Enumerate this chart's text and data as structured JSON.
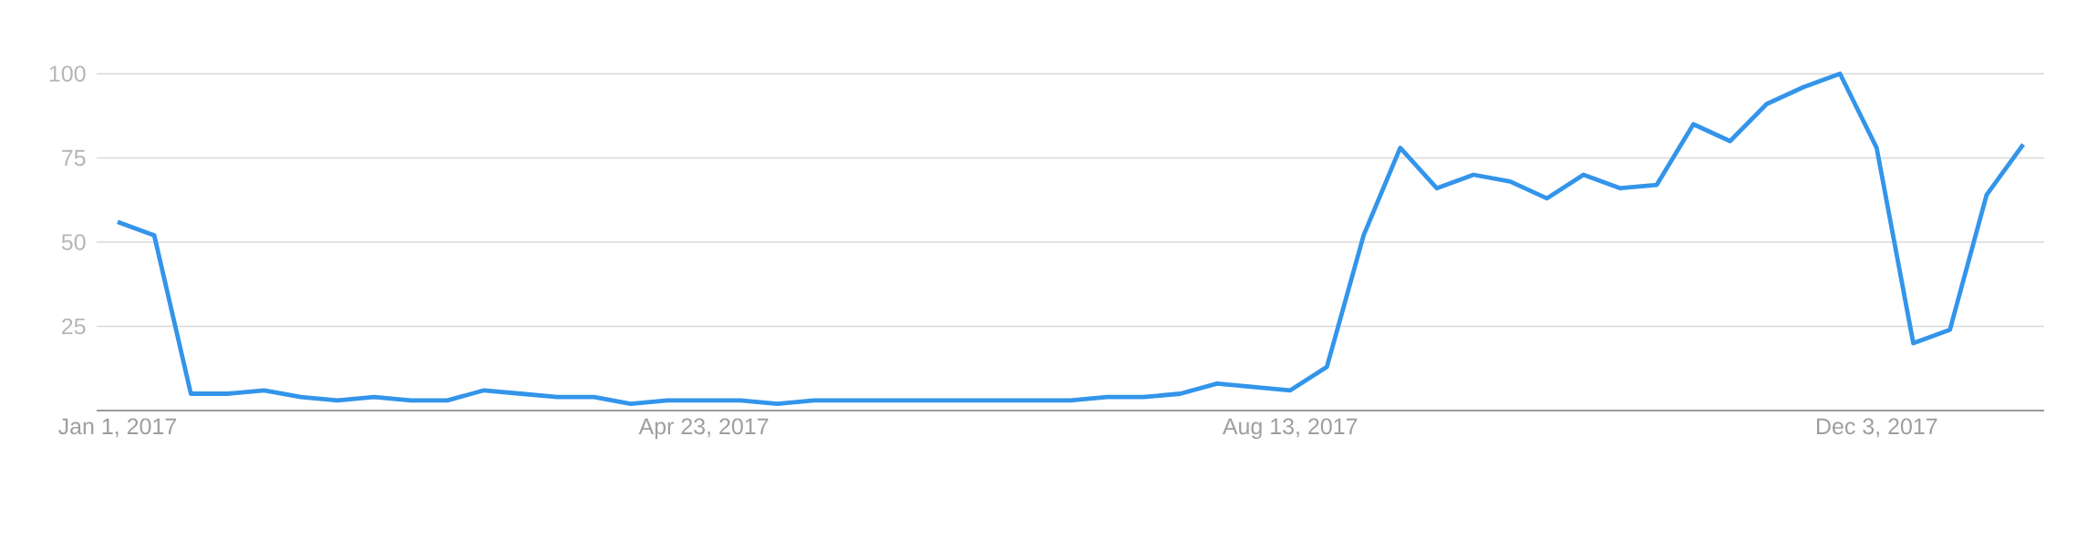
{
  "chart_data": {
    "type": "line",
    "x": [
      "2017-01-01",
      "2017-01-08",
      "2017-01-15",
      "2017-01-22",
      "2017-01-29",
      "2017-02-05",
      "2017-02-12",
      "2017-02-19",
      "2017-02-26",
      "2017-03-05",
      "2017-03-12",
      "2017-03-19",
      "2017-03-26",
      "2017-04-02",
      "2017-04-09",
      "2017-04-16",
      "2017-04-23",
      "2017-04-30",
      "2017-05-07",
      "2017-05-14",
      "2017-05-21",
      "2017-05-28",
      "2017-06-04",
      "2017-06-11",
      "2017-06-18",
      "2017-06-25",
      "2017-07-02",
      "2017-07-09",
      "2017-07-16",
      "2017-07-23",
      "2017-07-30",
      "2017-08-06",
      "2017-08-13",
      "2017-08-20",
      "2017-08-27",
      "2017-09-03",
      "2017-09-10",
      "2017-09-17",
      "2017-09-24",
      "2017-10-01",
      "2017-10-08",
      "2017-10-15",
      "2017-10-22",
      "2017-10-29",
      "2017-11-05",
      "2017-11-12",
      "2017-11-19",
      "2017-11-26",
      "2017-12-03",
      "2017-12-10",
      "2017-12-17",
      "2017-12-24",
      "2017-12-31"
    ],
    "series": [
      {
        "color": "#3395ea",
        "values": [
          56,
          52,
          5,
          5,
          6,
          4,
          3,
          4,
          3,
          3,
          6,
          5,
          4,
          4,
          2,
          3,
          3,
          3,
          2,
          3,
          3,
          3,
          3,
          3,
          3,
          3,
          3,
          4,
          4,
          5,
          8,
          7,
          6,
          13,
          52,
          78,
          66,
          70,
          68,
          63,
          70,
          66,
          67,
          85,
          80,
          91,
          96,
          100,
          78,
          20,
          24,
          64,
          79
        ]
      }
    ],
    "xlim": [
      "2016-12-28",
      "2018-01-04"
    ],
    "xticks": [
      {
        "value": "2017-01-01",
        "label": "Jan 1, 2017"
      },
      {
        "value": "2017-04-23",
        "label": "Apr 23, 2017"
      },
      {
        "value": "2017-08-13",
        "label": "Aug 13, 2017"
      },
      {
        "value": "2017-12-03",
        "label": "Dec 3, 2017"
      }
    ],
    "ylim": [
      0,
      100
    ],
    "yticks": [
      25,
      50,
      75,
      100
    ],
    "grid": "y"
  }
}
